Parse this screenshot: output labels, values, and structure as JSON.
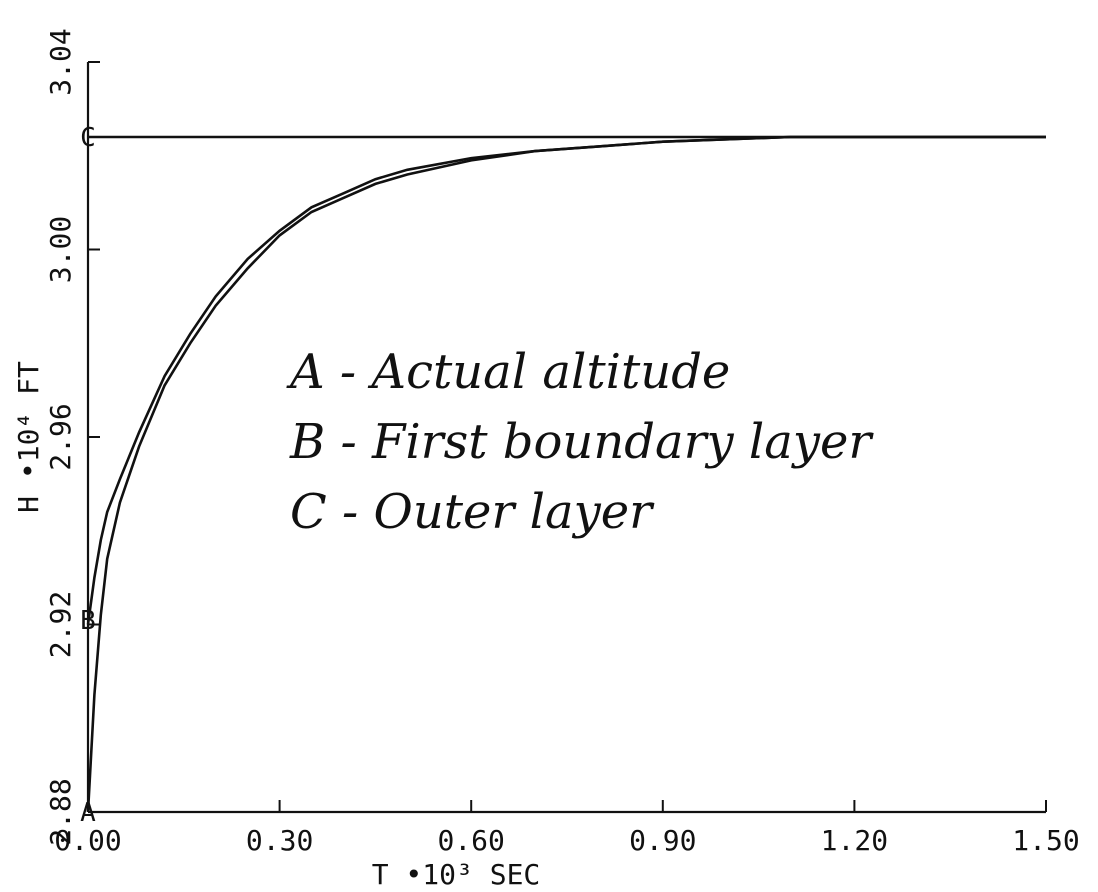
{
  "chart_data": {
    "type": "line",
    "xlabel": "T  •10³ SEC",
    "ylabel": "H  •10⁴ FT",
    "xlim": [
      0.0,
      1.5
    ],
    "ylim": [
      2.88,
      3.04
    ],
    "xticks": [
      "0.00",
      "0.30",
      "0.60",
      "0.90",
      "1.20",
      "1.50"
    ],
    "yticks": [
      "2.88",
      "2.92",
      "2.96",
      "3.00",
      "3.04"
    ],
    "grid": false,
    "legend_placement": "center",
    "legend": [
      "A - Actual altitude",
      "B - First boundary layer",
      "C - Outer layer"
    ],
    "series": [
      {
        "name": "A",
        "x": [
          0.0,
          0.01,
          0.02,
          0.03,
          0.05,
          0.08,
          0.12,
          0.16,
          0.2,
          0.25,
          0.3,
          0.35,
          0.4,
          0.45,
          0.5,
          0.6,
          0.7,
          0.8,
          0.9,
          1.0,
          1.1,
          1.2,
          1.3,
          1.4,
          1.5
        ],
        "y": [
          2.88,
          2.905,
          2.922,
          2.934,
          2.946,
          2.958,
          2.971,
          2.98,
          2.988,
          2.996,
          3.003,
          3.008,
          3.011,
          3.014,
          3.016,
          3.019,
          3.021,
          3.022,
          3.023,
          3.0235,
          3.024,
          3.024,
          3.024,
          3.024,
          3.024
        ]
      },
      {
        "name": "B",
        "x": [
          0.0,
          0.01,
          0.02,
          0.03,
          0.05,
          0.08,
          0.12,
          0.16,
          0.2,
          0.25,
          0.3,
          0.35,
          0.4,
          0.45,
          0.5,
          0.6,
          0.7,
          0.8,
          0.9,
          1.0,
          1.1,
          1.2,
          1.3,
          1.4,
          1.5
        ],
        "y": [
          2.92,
          2.93,
          2.938,
          2.944,
          2.951,
          2.961,
          2.973,
          2.982,
          2.99,
          2.998,
          3.004,
          3.009,
          3.012,
          3.015,
          3.017,
          3.0195,
          3.021,
          3.022,
          3.023,
          3.0235,
          3.024,
          3.024,
          3.024,
          3.024,
          3.024
        ]
      },
      {
        "name": "C",
        "x": [
          0.0,
          1.5
        ],
        "y": [
          3.024,
          3.024
        ]
      }
    ],
    "series_markers": [
      {
        "label": "A",
        "x": 0.0,
        "y": 2.88
      },
      {
        "label": "B",
        "x": 0.0,
        "y": 2.921
      },
      {
        "label": "C",
        "x": 0.0,
        "y": 3.024
      }
    ]
  }
}
